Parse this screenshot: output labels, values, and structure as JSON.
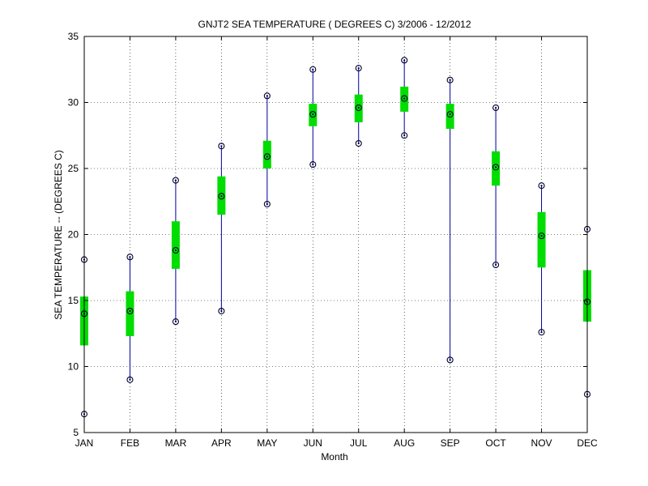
{
  "chart_data": {
    "type": "box",
    "title": "GNJT2  SEA TEMPERATURE ( DEGREES C) 3/2006 - 12/2012",
    "xlabel": "Month",
    "ylabel": "SEA TEMPERATURE -- (DEGREES C)",
    "categories": [
      "JAN",
      "FEB",
      "MAR",
      "APR",
      "MAY",
      "JUN",
      "JUL",
      "AUG",
      "SEP",
      "OCT",
      "NOV",
      "DEC"
    ],
    "min": [
      6.4,
      9.0,
      13.4,
      14.2,
      22.3,
      25.3,
      26.9,
      27.5,
      10.5,
      17.7,
      12.6,
      7.9
    ],
    "q1": [
      11.6,
      12.3,
      17.4,
      21.5,
      25.0,
      28.2,
      28.5,
      29.3,
      28.0,
      23.7,
      17.5,
      13.4
    ],
    "median": [
      14.0,
      14.2,
      18.8,
      22.9,
      25.9,
      29.1,
      29.6,
      30.3,
      29.1,
      25.1,
      19.9,
      14.9
    ],
    "q3": [
      15.3,
      15.7,
      21.0,
      24.4,
      27.1,
      29.9,
      30.6,
      31.2,
      29.9,
      26.3,
      21.7,
      17.3
    ],
    "max": [
      18.1,
      18.3,
      24.1,
      26.7,
      30.5,
      32.5,
      32.6,
      33.2,
      31.7,
      29.6,
      23.7,
      20.4
    ],
    "ylim": [
      5,
      35
    ],
    "yticks": [
      5,
      10,
      15,
      20,
      25,
      30,
      35
    ],
    "grid": true,
    "colors": {
      "box": "#00dd00",
      "whisker": "#0000a0",
      "marker": "#000033",
      "grid": "#000000"
    }
  }
}
